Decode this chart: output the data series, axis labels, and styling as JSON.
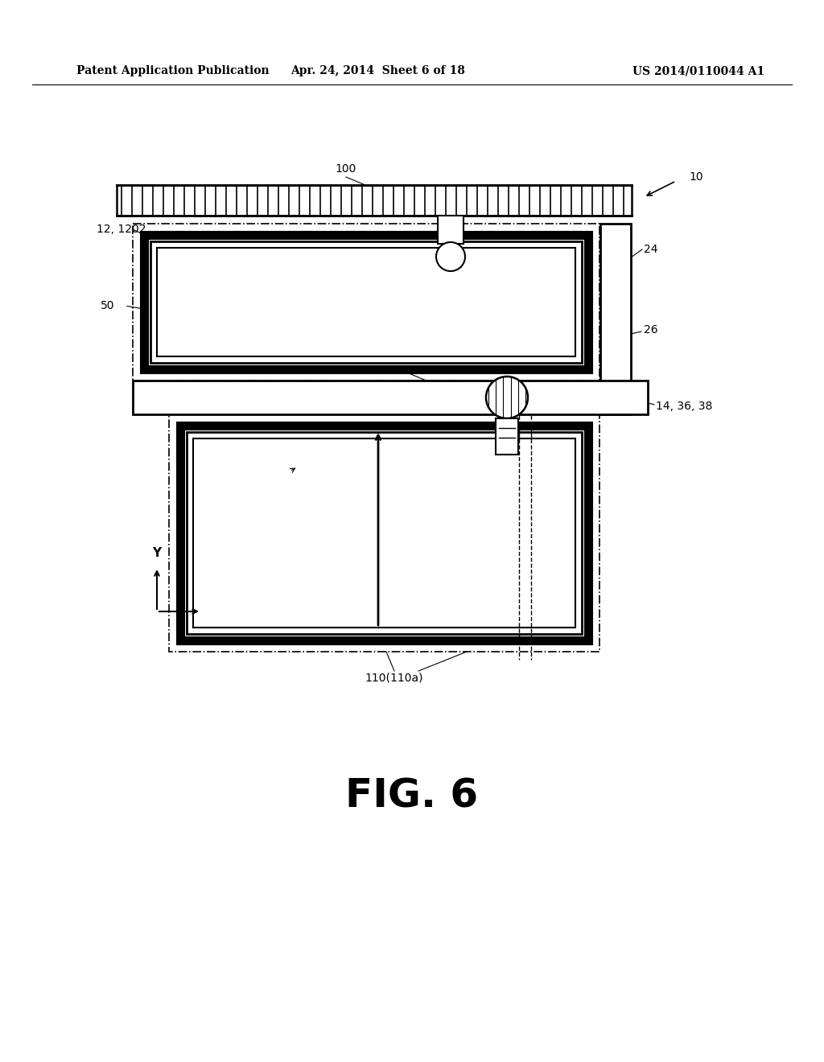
{
  "bg_color": "#ffffff",
  "line_color": "#000000",
  "header_left": "Patent Application Publication",
  "header_mid": "Apr. 24, 2014  Sheet 6 of 18",
  "header_right": "US 2014/0110044 A1",
  "fig_label": "FIG. 6"
}
